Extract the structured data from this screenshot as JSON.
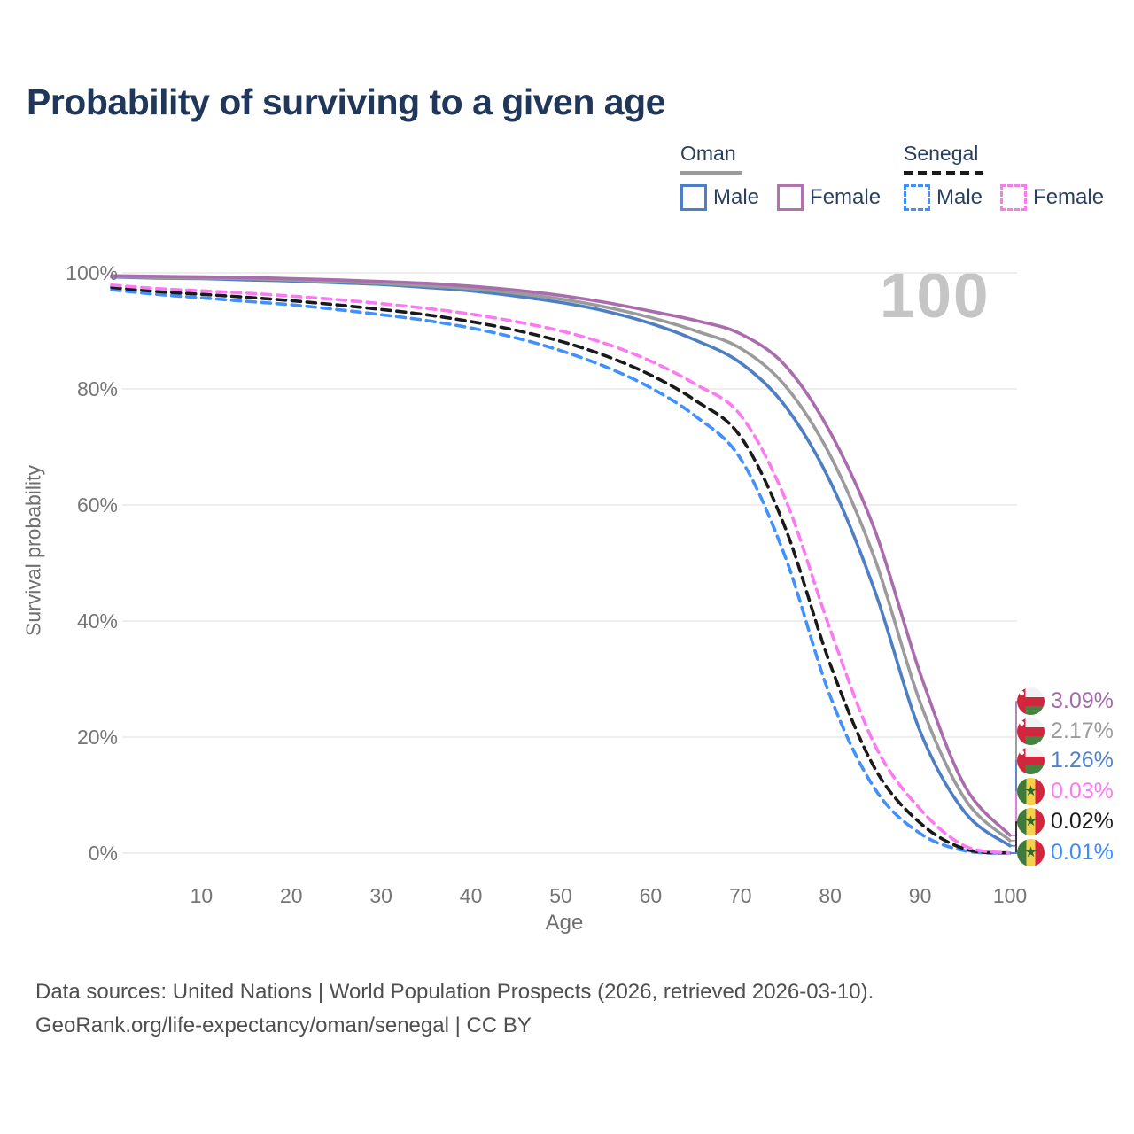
{
  "title": "Probability of surviving to a given age",
  "legend": {
    "groups": [
      {
        "label": "Oman",
        "line_style": "solid",
        "line_color": "#9b9b9b",
        "items": [
          {
            "label": "Male",
            "color": "#4e7fc4",
            "style": "solid"
          },
          {
            "label": "Female",
            "color": "#b173ae",
            "style": "solid"
          }
        ]
      },
      {
        "label": "Senegal",
        "line_style": "dashed",
        "line_color": "#1a1a1a",
        "items": [
          {
            "label": "Male",
            "color": "#4190fb",
            "style": "dashed"
          },
          {
            "label": "Female",
            "color": "#fb7af1",
            "style": "dashed"
          }
        ]
      }
    ]
  },
  "watermark": "100",
  "axes": {
    "x_label": "Age",
    "y_label": "Survival probability",
    "x_ticks": [
      10,
      20,
      30,
      40,
      50,
      60,
      70,
      80,
      90,
      100
    ],
    "y_ticks": [
      {
        "value": 0,
        "label": "0%"
      },
      {
        "value": 20,
        "label": "20%"
      },
      {
        "value": 40,
        "label": "40%"
      },
      {
        "value": 60,
        "label": "60%"
      },
      {
        "value": 80,
        "label": "80%"
      },
      {
        "value": 100,
        "label": "100%"
      }
    ]
  },
  "chart_data": {
    "type": "line",
    "title": "Probability of surviving to a given age",
    "xlabel": "Age",
    "ylabel": "Survival probability",
    "xlim": [
      0,
      100
    ],
    "ylim": [
      0,
      100
    ],
    "grid": "horizontal",
    "x_ages": [
      0,
      5,
      10,
      15,
      20,
      25,
      30,
      35,
      40,
      45,
      50,
      55,
      60,
      65,
      70,
      75,
      80,
      85,
      90,
      95,
      100
    ],
    "series": [
      {
        "key": "senegal_male",
        "name": "Senegal — Male",
        "country": "Senegal",
        "sex": "Male",
        "style": "dashed",
        "color": "#4190fb",
        "values": [
          97.1,
          96.3,
          95.7,
          95.1,
          94.5,
          93.7,
          92.8,
          91.8,
          90.5,
          88.8,
          86.6,
          83.8,
          80.2,
          75.3,
          68.0,
          51.0,
          27.0,
          11.0,
          3.4,
          0.4,
          0.01
        ]
      },
      {
        "key": "senegal_both",
        "name": "Senegal — Both sexes",
        "country": "Senegal",
        "sex": "Both",
        "style": "dashed",
        "color": "#1a1a1a",
        "values": [
          97.5,
          96.8,
          96.3,
          95.8,
          95.2,
          94.5,
          93.7,
          92.8,
          91.6,
          90.1,
          88.2,
          85.7,
          82.4,
          78.0,
          71.8,
          56.0,
          32.5,
          14.5,
          5.2,
          0.7,
          0.02
        ]
      },
      {
        "key": "senegal_female",
        "name": "Senegal — Female",
        "country": "Senegal",
        "sex": "Female",
        "style": "dashed",
        "color": "#fb7af1",
        "values": [
          97.9,
          97.3,
          96.9,
          96.5,
          96.0,
          95.4,
          94.7,
          93.9,
          92.9,
          91.6,
          90.0,
          87.8,
          84.8,
          80.8,
          75.5,
          61.0,
          38.5,
          18.5,
          7.6,
          1.2,
          0.03
        ]
      },
      {
        "key": "oman_male",
        "name": "Oman — Male",
        "country": "Oman",
        "sex": "Male",
        "style": "solid",
        "color": "#4e7fc4",
        "values": [
          99.3,
          99.1,
          99.0,
          98.8,
          98.6,
          98.3,
          98.0,
          97.5,
          96.9,
          96.0,
          94.9,
          93.4,
          91.3,
          88.4,
          84.5,
          77.0,
          64.0,
          45.0,
          21.0,
          7.0,
          1.26
        ]
      },
      {
        "key": "oman_both",
        "name": "Oman — Both sexes",
        "country": "Oman",
        "sex": "Both",
        "style": "solid",
        "color": "#9b9b9b",
        "values": [
          99.4,
          99.2,
          99.1,
          99.0,
          98.8,
          98.5,
          98.2,
          97.8,
          97.3,
          96.5,
          95.5,
          94.1,
          92.3,
          90.0,
          87.0,
          80.5,
          68.5,
          50.5,
          26.0,
          9.3,
          2.17
        ]
      },
      {
        "key": "oman_female",
        "name": "Oman — Female",
        "country": "Oman",
        "sex": "Female",
        "style": "solid",
        "color": "#a96cac",
        "values": [
          99.5,
          99.4,
          99.3,
          99.2,
          99.0,
          98.8,
          98.5,
          98.2,
          97.7,
          97.0,
          96.1,
          94.9,
          93.4,
          91.8,
          89.5,
          84.0,
          72.5,
          55.5,
          31.0,
          11.5,
          3.09
        ]
      }
    ],
    "hover_age_indicator": "100"
  },
  "end_labels": [
    {
      "value": "3.09%",
      "series": "oman_female",
      "flag": "oman-flag-icon",
      "color": "#a06ba6"
    },
    {
      "value": "2.17%",
      "series": "oman_both",
      "flag": "oman-flag-icon",
      "color": "#9b9b9b"
    },
    {
      "value": "1.26%",
      "series": "oman_male",
      "flag": "oman-flag-icon",
      "color": "#4e82c8"
    },
    {
      "value": "0.03%",
      "series": "senegal_female",
      "flag": "senegal-flag-icon",
      "color": "#fb7af1"
    },
    {
      "value": "0.02%",
      "series": "senegal_both",
      "flag": "senegal-flag-icon",
      "color": "#1a1a1a"
    },
    {
      "value": "0.01%",
      "series": "senegal_male",
      "flag": "senegal-flag-icon",
      "color": "#3f8bfb"
    }
  ],
  "footer": {
    "line1": "Data sources: United Nations | World Population Prospects (2026, retrieved 2026-03-10).",
    "line2": "GeoRank.org/life-expectancy/oman/senegal | CC BY"
  }
}
